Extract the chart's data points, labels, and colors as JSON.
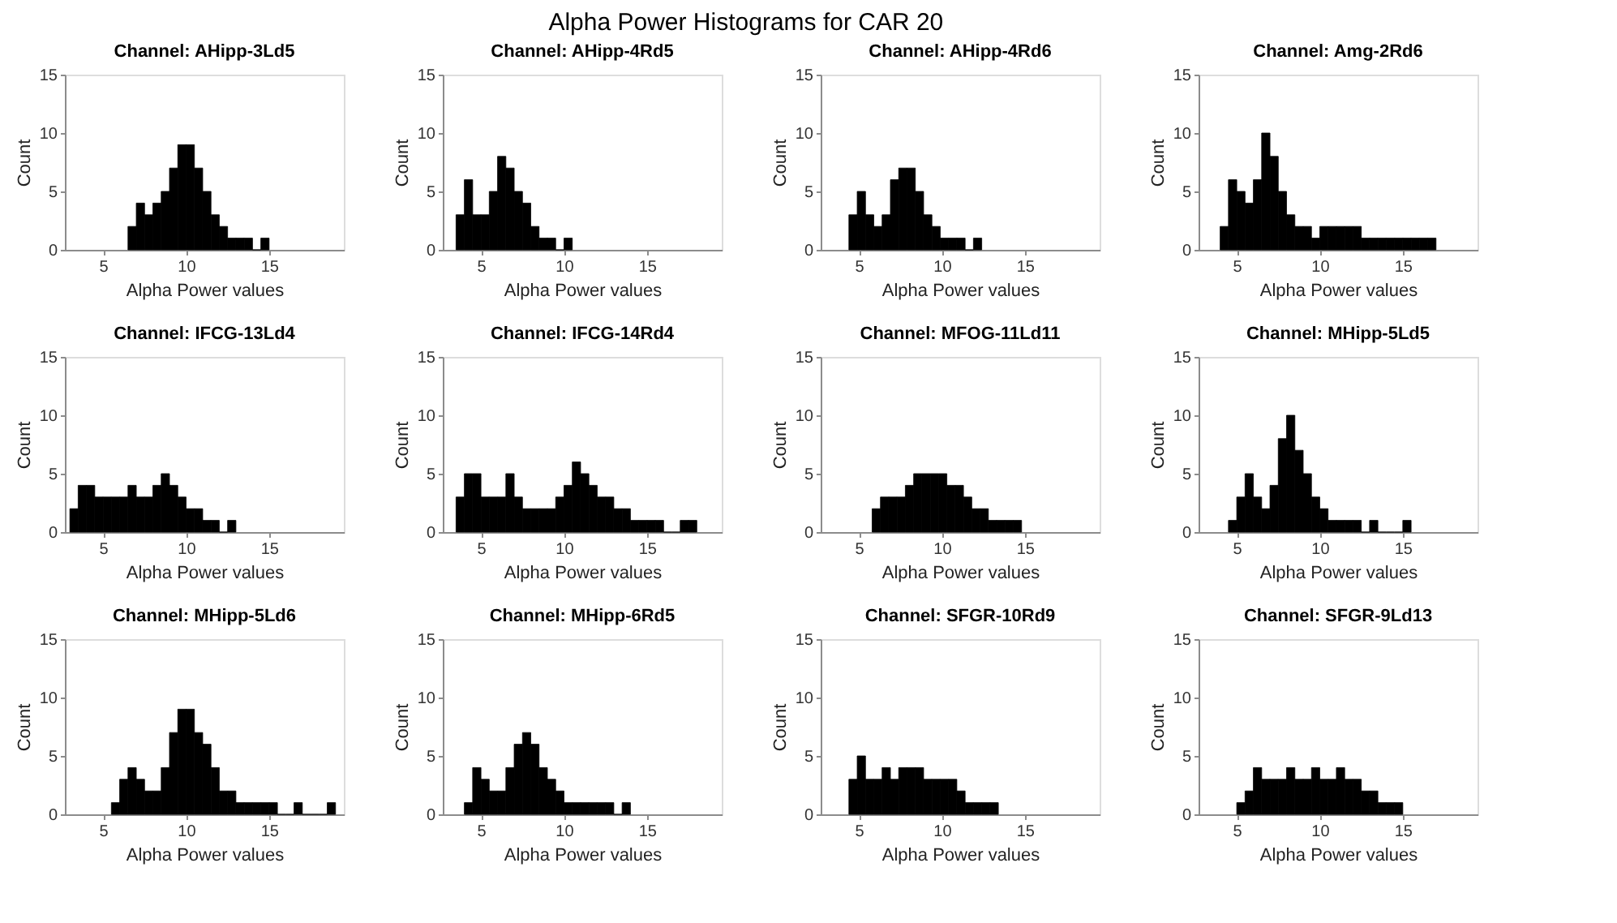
{
  "chart_data": [
    {
      "type": "histogram",
      "title": "Channel: AHipp-3Ld5",
      "xlabel": "Alpha Power values",
      "ylabel": "Count",
      "annotations": [
        "Alpha Power Histograms for CAR 20"
      ],
      "bins": [
        6.5,
        7,
        7.5,
        8,
        8.5,
        9,
        9.5,
        10,
        10.5,
        11,
        11.5,
        12,
        12.5,
        13,
        13.5,
        14,
        14.5,
        15
      ],
      "values": [
        2,
        4,
        3,
        4,
        5,
        7,
        9,
        9,
        7,
        5,
        3,
        2,
        1,
        1,
        1,
        0,
        1
      ],
      "color": "#000000",
      "xlim": [
        2.7,
        19.5
      ],
      "xticks": [
        5,
        10,
        15
      ],
      "ylim": [
        0,
        15
      ],
      "yticks": [
        0,
        5,
        10,
        15
      ],
      "grid": false
    },
    {
      "type": "histogram",
      "title": "Channel: AHipp-4Rd5",
      "xlabel": "Alpha Power values",
      "ylabel": "Count",
      "bins": [
        3.5,
        4,
        4.5,
        5,
        5.5,
        6,
        6.5,
        7,
        7.5,
        8,
        8.5,
        9,
        9.5,
        10,
        10.5
      ],
      "values": [
        3,
        6,
        3,
        3,
        5,
        8,
        7,
        5,
        4,
        2,
        1,
        1,
        0,
        1
      ],
      "color": "#000000",
      "xlim": [
        2.7,
        19.5
      ],
      "xticks": [
        5,
        10,
        15
      ],
      "ylim": [
        0,
        15
      ],
      "yticks": [
        0,
        5,
        10,
        15
      ],
      "grid": false
    },
    {
      "type": "histogram",
      "title": "Channel: AHipp-4Rd6",
      "xlabel": "Alpha Power values",
      "ylabel": "Count",
      "bins": [
        4.4,
        4.9,
        5.4,
        5.9,
        6.4,
        6.9,
        7.4,
        7.9,
        8.4,
        8.9,
        9.4,
        9.9,
        10.4,
        10.9,
        11.4,
        11.9,
        12.4
      ],
      "values": [
        3,
        5,
        3,
        2,
        3,
        6,
        7,
        7,
        5,
        3,
        2,
        1,
        1,
        1,
        0,
        1
      ],
      "color": "#000000",
      "xlim": [
        2.7,
        19.5
      ],
      "xticks": [
        5,
        10,
        15
      ],
      "ylim": [
        0,
        15
      ],
      "yticks": [
        0,
        5,
        10,
        15
      ],
      "grid": false
    },
    {
      "type": "histogram",
      "title": "Channel: Amg-2Rd6",
      "xlabel": "Alpha Power values",
      "ylabel": "Count",
      "bins": [
        4,
        4.5,
        5,
        5.5,
        6,
        6.5,
        7,
        7.5,
        8,
        8.5,
        9,
        9.5,
        10,
        10.5,
        11,
        11.5,
        12,
        12.5,
        13,
        13.5,
        14,
        14.5,
        15,
        15.5,
        16,
        16.5,
        17
      ],
      "values": [
        2,
        6,
        5,
        4,
        6,
        10,
        8,
        5,
        3,
        2,
        2,
        1,
        2,
        2,
        2,
        2,
        2,
        1,
        1,
        1,
        1,
        1,
        1,
        1,
        1,
        1
      ],
      "color": "#000000",
      "xlim": [
        2.7,
        19.5
      ],
      "xticks": [
        5,
        10,
        15
      ],
      "ylim": [
        0,
        15
      ],
      "yticks": [
        0,
        5,
        10,
        15
      ],
      "grid": false
    },
    {
      "type": "histogram",
      "title": "Channel: IFCG-13Ld4",
      "xlabel": "Alpha Power values",
      "ylabel": "Count",
      "bins": [
        3,
        3.5,
        4,
        4.5,
        5,
        5.5,
        6,
        6.5,
        7,
        7.5,
        8,
        8.5,
        9,
        9.5,
        10,
        10.5,
        11,
        11.5,
        12,
        12.5,
        13
      ],
      "values": [
        2,
        4,
        4,
        3,
        3,
        3,
        3,
        4,
        3,
        3,
        4,
        5,
        4,
        3,
        2,
        2,
        1,
        1,
        0,
        1
      ],
      "color": "#000000",
      "xlim": [
        2.7,
        19.5
      ],
      "xticks": [
        5,
        10,
        15
      ],
      "ylim": [
        0,
        15
      ],
      "yticks": [
        0,
        5,
        10,
        15
      ],
      "grid": false
    },
    {
      "type": "histogram",
      "title": "Channel: IFCG-14Rd4",
      "xlabel": "Alpha Power values",
      "ylabel": "Count",
      "bins": [
        3.5,
        4,
        4.5,
        5,
        5.5,
        6,
        6.5,
        7,
        7.5,
        8,
        8.5,
        9,
        9.5,
        10,
        10.5,
        11,
        11.5,
        12,
        12.5,
        13,
        13.5,
        14,
        14.5,
        15,
        15.5,
        16,
        16.5,
        17,
        17.5,
        18
      ],
      "values": [
        3,
        5,
        5,
        3,
        3,
        3,
        5,
        3,
        2,
        2,
        2,
        2,
        3,
        4,
        6,
        5,
        4,
        3,
        3,
        2,
        2,
        1,
        1,
        1,
        1,
        0,
        0,
        1,
        1
      ],
      "color": "#000000",
      "xlim": [
        2.7,
        19.5
      ],
      "xticks": [
        5,
        10,
        15
      ],
      "ylim": [
        0,
        15
      ],
      "yticks": [
        0,
        5,
        10,
        15
      ],
      "grid": false
    },
    {
      "type": "histogram",
      "title": "Channel: MFOG-11Ld11",
      "xlabel": "Alpha Power values",
      "ylabel": "Count",
      "bins": [
        5.8,
        6.3,
        6.8,
        7.3,
        7.8,
        8.3,
        8.8,
        9.3,
        9.8,
        10.3,
        10.8,
        11.3,
        11.8,
        12.3,
        12.8,
        13.3,
        13.8,
        14.3,
        14.8
      ],
      "values": [
        2,
        3,
        3,
        3,
        4,
        5,
        5,
        5,
        5,
        4,
        4,
        3,
        2,
        2,
        1,
        1,
        1,
        1
      ],
      "color": "#000000",
      "xlim": [
        2.7,
        19.5
      ],
      "xticks": [
        5,
        10,
        15
      ],
      "ylim": [
        0,
        15
      ],
      "yticks": [
        0,
        5,
        10,
        15
      ],
      "grid": false
    },
    {
      "type": "histogram",
      "title": "Channel: MHipp-5Ld5",
      "xlabel": "Alpha Power values",
      "ylabel": "Count",
      "bins": [
        4.5,
        5,
        5.5,
        6,
        6.5,
        7,
        7.5,
        8,
        8.5,
        9,
        9.5,
        10,
        10.5,
        11,
        11.5,
        12,
        12.5,
        13,
        13.5,
        14,
        14.5,
        15,
        15.5
      ],
      "values": [
        1,
        3,
        5,
        3,
        2,
        4,
        8,
        10,
        7,
        5,
        3,
        2,
        1,
        1,
        1,
        1,
        0,
        1,
        0,
        0,
        0,
        1
      ],
      "color": "#000000",
      "xlim": [
        2.7,
        19.5
      ],
      "xticks": [
        5,
        10,
        15
      ],
      "ylim": [
        0,
        15
      ],
      "yticks": [
        0,
        5,
        10,
        15
      ],
      "grid": false
    },
    {
      "type": "histogram",
      "title": "Channel: MHipp-5Ld6",
      "xlabel": "Alpha Power values",
      "ylabel": "Count",
      "bins": [
        5.5,
        6,
        6.5,
        7,
        7.5,
        8,
        8.5,
        9,
        9.5,
        10,
        10.5,
        11,
        11.5,
        12,
        12.5,
        13,
        13.5,
        14,
        14.5,
        15,
        15.5,
        16,
        16.5,
        17,
        17.5,
        18,
        18.5,
        19
      ],
      "values": [
        1,
        3,
        4,
        3,
        2,
        2,
        4,
        7,
        9,
        9,
        7,
        6,
        4,
        2,
        2,
        1,
        1,
        1,
        1,
        1,
        0,
        0,
        1,
        0,
        0,
        0,
        1
      ],
      "color": "#000000",
      "xlim": [
        2.7,
        19.5
      ],
      "xticks": [
        5,
        10,
        15
      ],
      "ylim": [
        0,
        15
      ],
      "yticks": [
        0,
        5,
        10,
        15
      ],
      "grid": false
    },
    {
      "type": "histogram",
      "title": "Channel: MHipp-6Rd5",
      "xlabel": "Alpha Power values",
      "ylabel": "Count",
      "bins": [
        4,
        4.5,
        5,
        5.5,
        6,
        6.5,
        7,
        7.5,
        8,
        8.5,
        9,
        9.5,
        10,
        10.5,
        11,
        11.5,
        12,
        12.5,
        13,
        13.5,
        14
      ],
      "values": [
        1,
        4,
        3,
        2,
        2,
        4,
        6,
        7,
        6,
        4,
        3,
        2,
        1,
        1,
        1,
        1,
        1,
        1,
        0,
        1
      ],
      "color": "#000000",
      "xlim": [
        2.7,
        19.5
      ],
      "xticks": [
        5,
        10,
        15
      ],
      "ylim": [
        0,
        15
      ],
      "yticks": [
        0,
        5,
        10,
        15
      ],
      "grid": false
    },
    {
      "type": "histogram",
      "title": "Channel: SFGR-10Rd9",
      "xlabel": "Alpha Power values",
      "ylabel": "Count",
      "bins": [
        4.4,
        4.9,
        5.4,
        5.9,
        6.4,
        6.9,
        7.4,
        7.9,
        8.4,
        8.9,
        9.4,
        9.9,
        10.4,
        10.9,
        11.4,
        11.9,
        12.4,
        12.9,
        13.4
      ],
      "values": [
        3,
        5,
        3,
        3,
        4,
        3,
        4,
        4,
        4,
        3,
        3,
        3,
        3,
        2,
        1,
        1,
        1,
        1
      ],
      "color": "#000000",
      "xlim": [
        2.7,
        19.5
      ],
      "xticks": [
        5,
        10,
        15
      ],
      "ylim": [
        0,
        15
      ],
      "yticks": [
        0,
        5,
        10,
        15
      ],
      "grid": false
    },
    {
      "type": "histogram",
      "title": "Channel: SFGR-9Ld13",
      "xlabel": "Alpha Power values",
      "ylabel": "Count",
      "bins": [
        5,
        5.5,
        6,
        6.5,
        7,
        7.5,
        8,
        8.5,
        9,
        9.5,
        10,
        10.5,
        11,
        11.5,
        12,
        12.5,
        13,
        13.5,
        14,
        14.5,
        15
      ],
      "values": [
        1,
        2,
        4,
        3,
        3,
        3,
        4,
        3,
        3,
        4,
        3,
        3,
        4,
        3,
        3,
        2,
        2,
        1,
        1,
        1
      ],
      "color": "#000000",
      "xlim": [
        2.7,
        19.5
      ],
      "xticks": [
        5,
        10,
        15
      ],
      "ylim": [
        0,
        15
      ],
      "yticks": [
        0,
        5,
        10,
        15
      ],
      "grid": false
    }
  ]
}
